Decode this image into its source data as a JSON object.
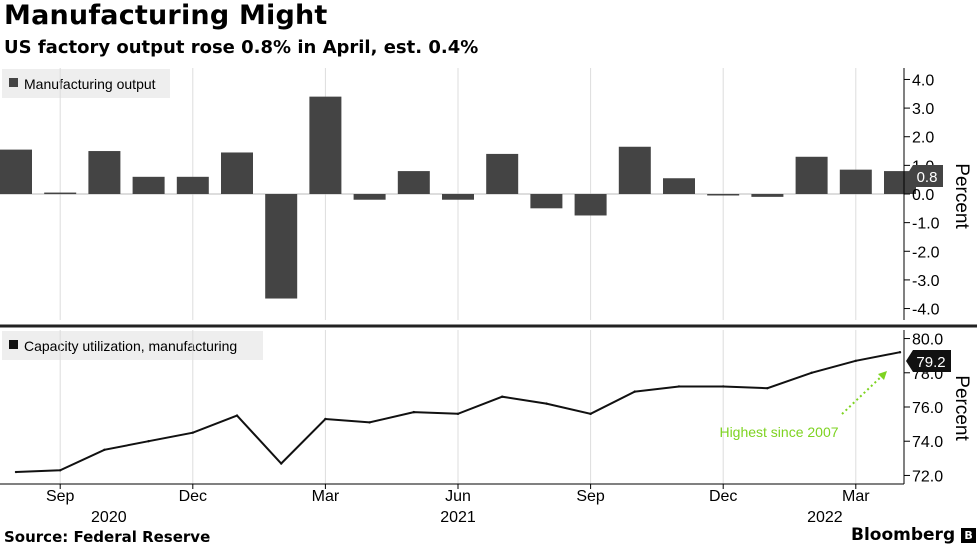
{
  "header": {
    "title": "Manufacturing Might",
    "subtitle": "US factory output rose 0.8% in April, est. 0.4%"
  },
  "footer": {
    "source": "Source: Federal Reserve",
    "brand": "Bloomberg",
    "brand_mark": "B"
  },
  "colors": {
    "bar": "#444444",
    "line": "#111111",
    "annotation": "#7ed321",
    "grid": "#dddddd"
  },
  "chart_data": [
    {
      "type": "bar",
      "legend": "Manufacturing output",
      "ylabel": "Percent",
      "ylim": [
        -4.4,
        4.4
      ],
      "yticks": [
        "4.0",
        "3.0",
        "2.0",
        "1.0",
        "0.0",
        "-1.0",
        "-2.0",
        "-3.0",
        "-4.0"
      ],
      "categories": [
        "Aug 2020",
        "Sep 2020",
        "Oct 2020",
        "Nov 2020",
        "Dec 2020",
        "Jan 2021",
        "Feb 2021",
        "Mar 2021",
        "Apr 2021",
        "May 2021",
        "Jun 2021",
        "Jul 2021",
        "Aug 2021",
        "Sep 2021",
        "Oct 2021",
        "Nov 2021",
        "Dec 2021",
        "Jan 2022",
        "Feb 2022",
        "Mar 2022",
        "Apr 2022"
      ],
      "values": [
        1.55,
        0.05,
        1.5,
        0.6,
        0.6,
        1.45,
        -3.65,
        3.4,
        -0.2,
        0.8,
        -0.2,
        1.4,
        -0.5,
        -0.75,
        1.65,
        0.55,
        -0.05,
        -0.1,
        1.3,
        0.85,
        0.8
      ],
      "last_value_label": "0.8"
    },
    {
      "type": "line",
      "legend": "Capacity utilization, manufacturing",
      "ylabel": "Percent",
      "ylim": [
        71.5,
        80.5
      ],
      "yticks": [
        "80.0",
        "78.0",
        "76.0",
        "74.0",
        "72.0"
      ],
      "categories": [
        "Aug 2020",
        "Sep 2020",
        "Oct 2020",
        "Nov 2020",
        "Dec 2020",
        "Jan 2021",
        "Feb 2021",
        "Mar 2021",
        "Apr 2021",
        "May 2021",
        "Jun 2021",
        "Jul 2021",
        "Aug 2021",
        "Sep 2021",
        "Oct 2021",
        "Nov 2021",
        "Dec 2021",
        "Jan 2022",
        "Feb 2022",
        "Mar 2022",
        "Apr 2022"
      ],
      "values": [
        72.2,
        72.3,
        73.5,
        74.0,
        74.5,
        75.5,
        72.7,
        75.3,
        75.1,
        75.7,
        75.6,
        76.6,
        76.2,
        75.6,
        76.9,
        77.2,
        77.2,
        77.1,
        78.0,
        78.7,
        79.2
      ],
      "last_value_label": "79.2",
      "annotation": "Highest since 2007"
    }
  ],
  "x_axis": {
    "month_ticks": [
      {
        "index": 1,
        "label": "Sep"
      },
      {
        "index": 4,
        "label": "Dec"
      },
      {
        "index": 7,
        "label": "Mar"
      },
      {
        "index": 10,
        "label": "Jun"
      },
      {
        "index": 13,
        "label": "Sep"
      },
      {
        "index": 16,
        "label": "Dec"
      },
      {
        "index": 19,
        "label": "Mar"
      }
    ],
    "years": [
      {
        "index": 2.1,
        "label": "2020"
      },
      {
        "index": 10.0,
        "label": "2021"
      },
      {
        "index": 18.3,
        "label": "2022"
      }
    ]
  }
}
